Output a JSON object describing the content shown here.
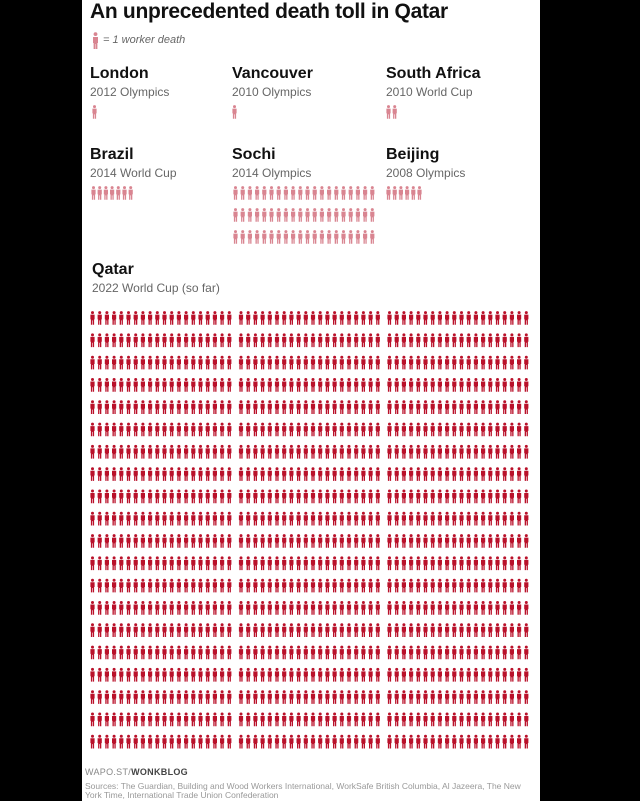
{
  "title": "An unprecedented death toll in Qatar",
  "legend": {
    "label": "= 1 worker death"
  },
  "colors": {
    "small_icon": "#d98591",
    "qatar_icon": "#b9112a",
    "card_bg": "#ffffff",
    "page_bg": "#000000"
  },
  "events": [
    {
      "key": "london",
      "name": "London",
      "subtitle": "2012 Olympics"
    },
    {
      "key": "vancouver",
      "name": "Vancouver",
      "subtitle": "2010 Olympics"
    },
    {
      "key": "south-africa",
      "name": "South Africa",
      "subtitle": "2010 World Cup"
    },
    {
      "key": "brazil",
      "name": "Brazil",
      "subtitle": "2014 World Cup"
    },
    {
      "key": "sochi",
      "name": "Sochi",
      "subtitle": "2014 Olympics"
    },
    {
      "key": "beijing",
      "name": "Beijing",
      "subtitle": "2008 Olympics"
    },
    {
      "key": "qatar",
      "name": "Qatar",
      "subtitle": "2022 World Cup (so far)"
    }
  ],
  "chart_data": {
    "type": "pictogram",
    "unit": "1 worker death",
    "categories": [
      "London",
      "Vancouver",
      "South Africa",
      "Brazil",
      "Sochi",
      "Beijing",
      "Qatar"
    ],
    "values": [
      1,
      1,
      2,
      7,
      60,
      6,
      1200
    ]
  },
  "footer": {
    "credit_prefix": "WAPO.ST/",
    "credit_brand": "WONKBLOG",
    "sources": "Sources: The Guardian, Building and Wood Workers International, WorkSafe British Columbia, Al Jazeera, The New York Time, International Trade Union Confederation"
  }
}
